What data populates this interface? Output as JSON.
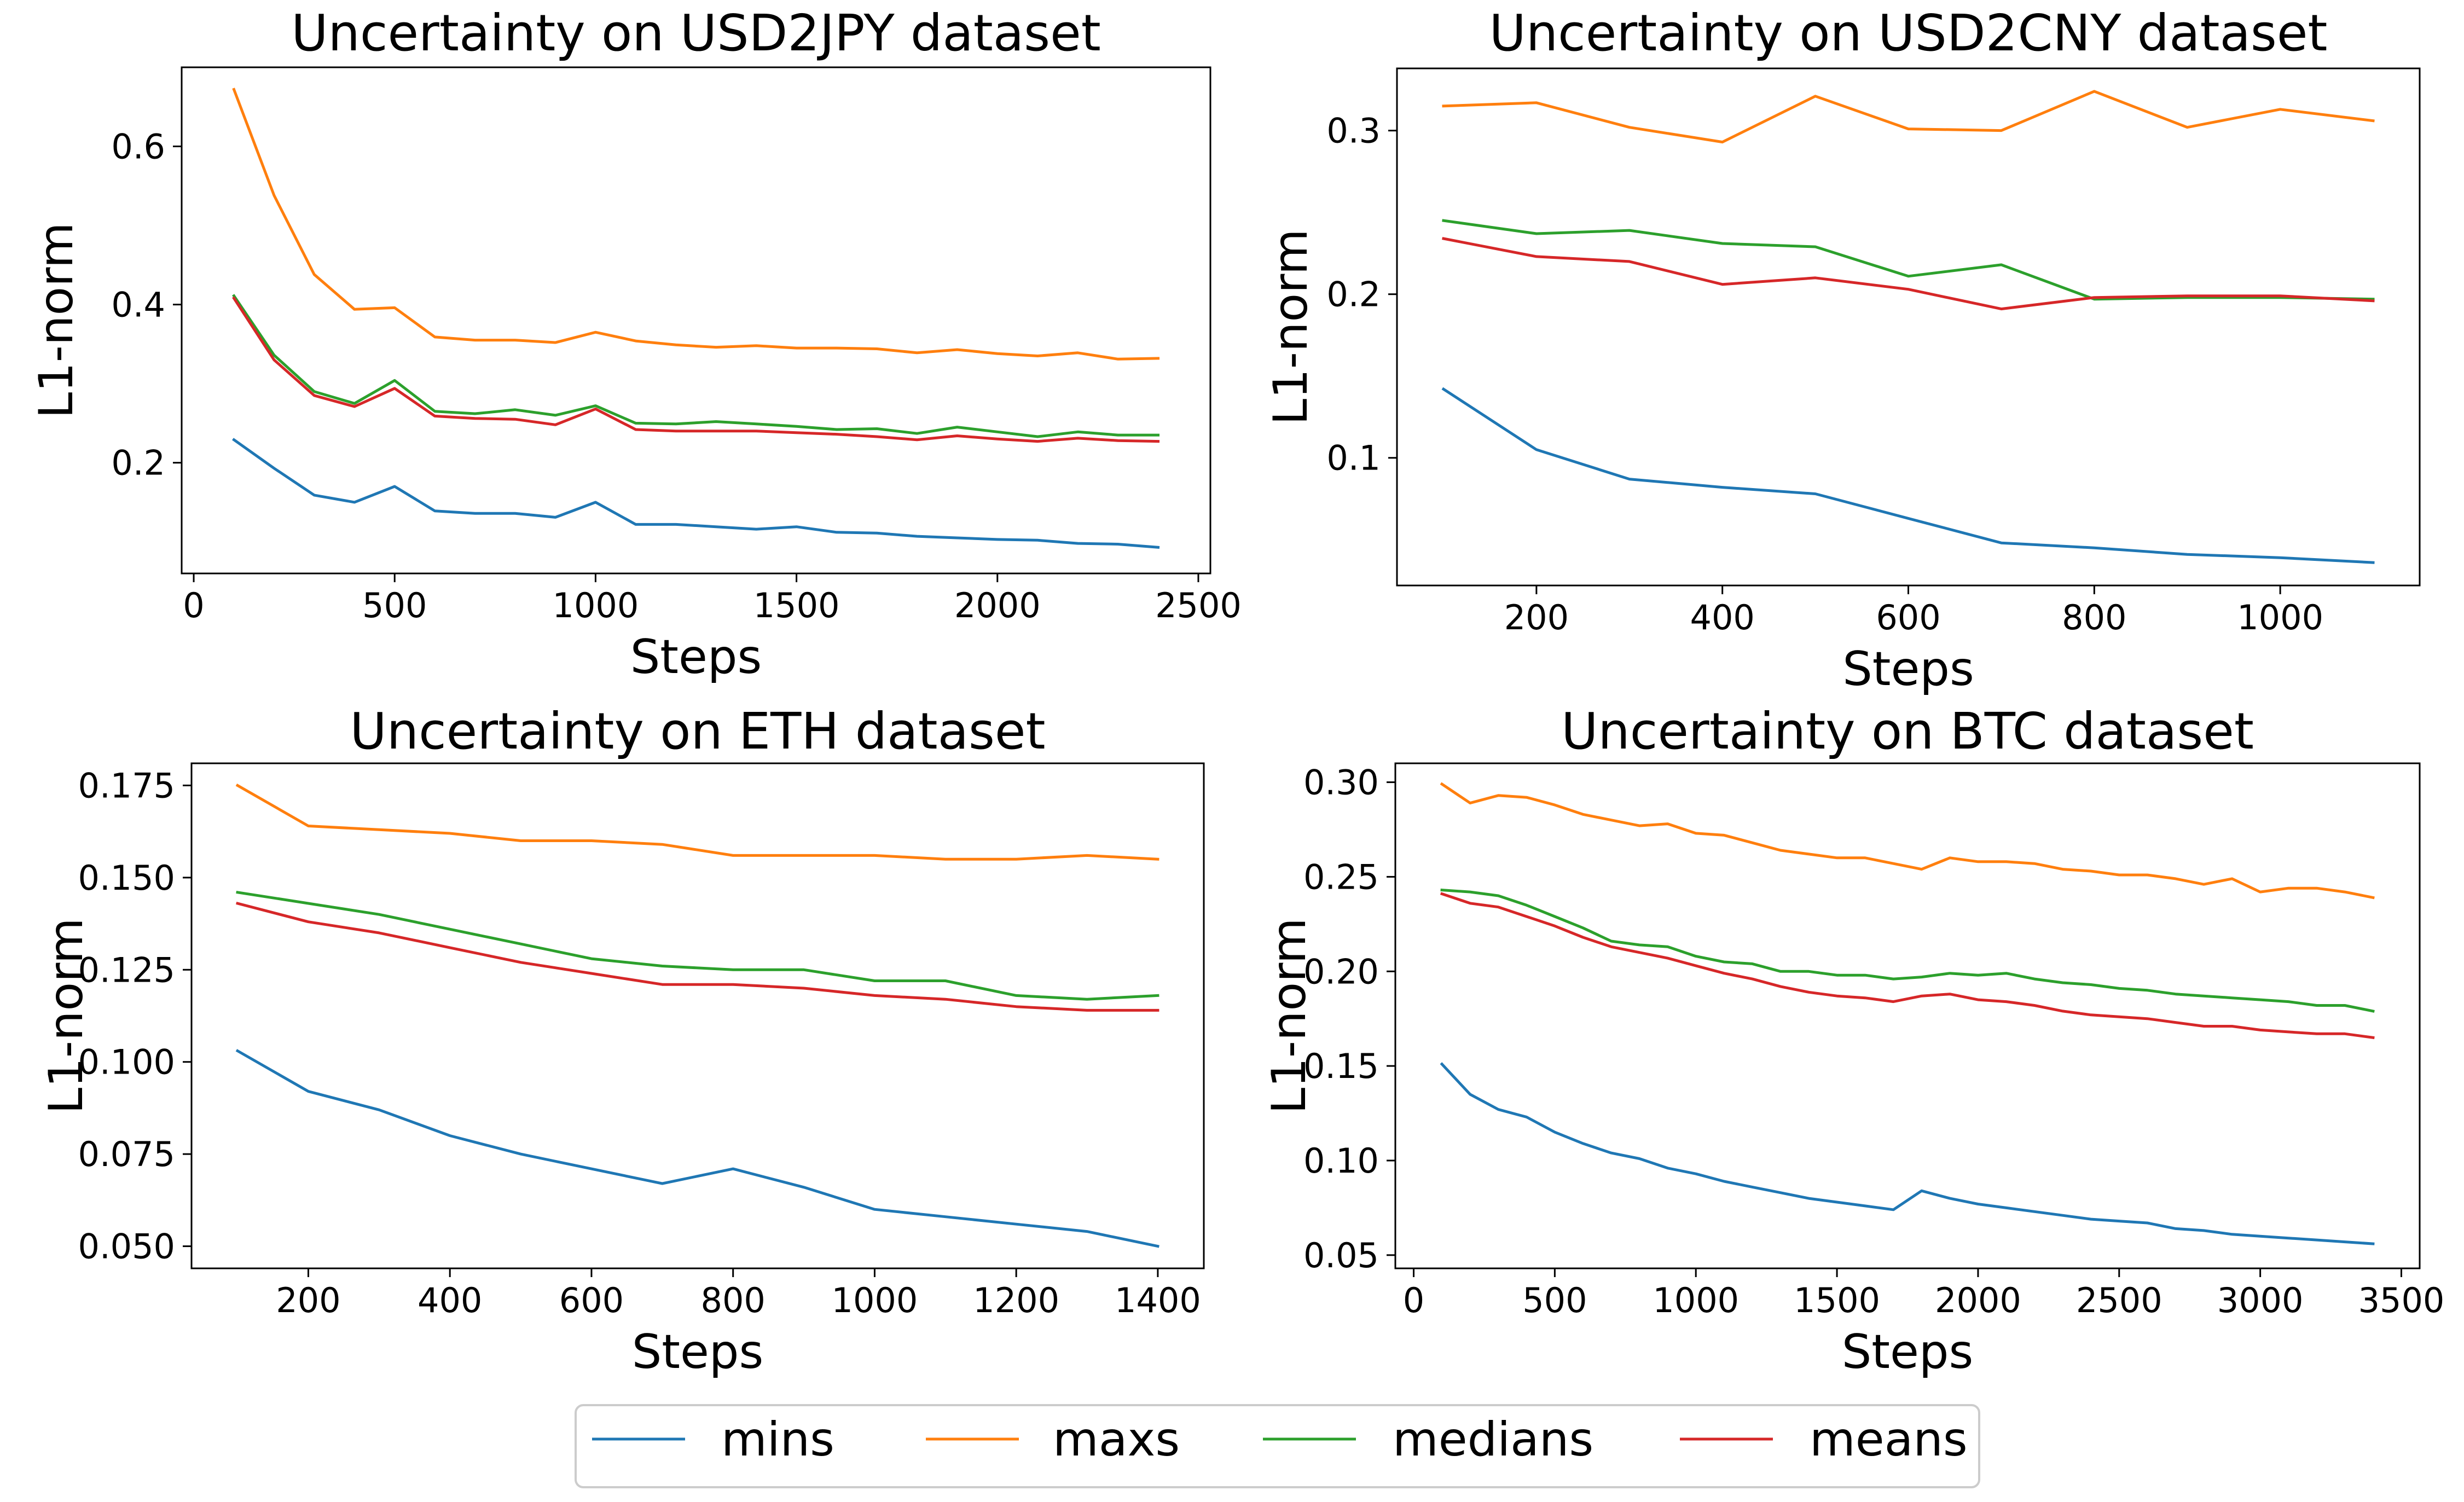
{
  "colors": {
    "mins": "#1f77b4",
    "maxs": "#ff7f0e",
    "medians": "#2ca02c",
    "means": "#d62728"
  },
  "legend": {
    "location": "bottom-center",
    "items": [
      {
        "key": "mins",
        "label": "mins"
      },
      {
        "key": "maxs",
        "label": "maxs"
      },
      {
        "key": "medians",
        "label": "medians"
      },
      {
        "key": "means",
        "label": "means"
      }
    ]
  },
  "chart_data": [
    {
      "type": "line",
      "title": "Uncertainty on USD2JPY dataset",
      "xlabel": "Steps",
      "ylabel": "L1-norm",
      "xlim": [
        -30,
        2530
      ],
      "ylim": [
        0.06,
        0.7
      ],
      "xticks": [
        0,
        500,
        1000,
        1500,
        2000,
        2500
      ],
      "xtick_labels": [
        "0",
        "500",
        "1000",
        "1500",
        "2000",
        "2500"
      ],
      "yticks": [
        0.2,
        0.4,
        0.6
      ],
      "ytick_labels": [
        "0.2",
        "0.4",
        "0.6"
      ],
      "x": [
        100,
        200,
        300,
        400,
        500,
        600,
        700,
        800,
        900,
        1000,
        1100,
        1200,
        1300,
        1400,
        1500,
        1600,
        1700,
        1800,
        1900,
        2000,
        2100,
        2200,
        2300,
        2400
      ],
      "series": [
        {
          "name": "mins",
          "values": [
            0.229,
            0.193,
            0.159,
            0.15,
            0.17,
            0.139,
            0.136,
            0.136,
            0.131,
            0.15,
            0.122,
            0.122,
            0.119,
            0.116,
            0.119,
            0.112,
            0.111,
            0.107,
            0.105,
            0.103,
            0.102,
            0.098,
            0.097,
            0.093
          ]
        },
        {
          "name": "maxs",
          "values": [
            0.672,
            0.538,
            0.438,
            0.394,
            0.396,
            0.359,
            0.355,
            0.355,
            0.352,
            0.365,
            0.354,
            0.349,
            0.346,
            0.348,
            0.345,
            0.345,
            0.344,
            0.339,
            0.343,
            0.338,
            0.335,
            0.339,
            0.331,
            0.332
          ]
        },
        {
          "name": "medians",
          "values": [
            0.411,
            0.336,
            0.29,
            0.275,
            0.304,
            0.265,
            0.262,
            0.267,
            0.26,
            0.272,
            0.25,
            0.249,
            0.252,
            0.249,
            0.246,
            0.242,
            0.243,
            0.237,
            0.245,
            0.239,
            0.233,
            0.239,
            0.235,
            0.235
          ]
        },
        {
          "name": "means",
          "values": [
            0.408,
            0.33,
            0.285,
            0.271,
            0.294,
            0.259,
            0.256,
            0.255,
            0.248,
            0.268,
            0.242,
            0.24,
            0.24,
            0.24,
            0.238,
            0.236,
            0.233,
            0.229,
            0.234,
            0.23,
            0.227,
            0.231,
            0.228,
            0.227
          ]
        }
      ]
    },
    {
      "type": "line",
      "title": "Uncertainty on USD2CNY dataset",
      "xlabel": "Steps",
      "ylabel": "L1-norm",
      "xlim": [
        50,
        1150
      ],
      "ylim": [
        0.022,
        0.338
      ],
      "xticks": [
        200,
        400,
        600,
        800,
        1000
      ],
      "xtick_labels": [
        "200",
        "400",
        "600",
        "800",
        "1000"
      ],
      "yticks": [
        0.1,
        0.2,
        0.3
      ],
      "ytick_labels": [
        "0.1",
        "0.2",
        "0.3"
      ],
      "x": [
        100,
        200,
        300,
        400,
        500,
        600,
        700,
        800,
        900,
        1000,
        1100
      ],
      "series": [
        {
          "name": "mins",
          "values": [
            0.142,
            0.105,
            0.087,
            0.082,
            0.078,
            0.063,
            0.048,
            0.045,
            0.041,
            0.039,
            0.036
          ]
        },
        {
          "name": "maxs",
          "values": [
            0.315,
            0.317,
            0.302,
            0.293,
            0.321,
            0.301,
            0.3,
            0.324,
            0.302,
            0.313,
            0.306
          ]
        },
        {
          "name": "medians",
          "values": [
            0.245,
            0.237,
            0.239,
            0.231,
            0.229,
            0.211,
            0.218,
            0.197,
            0.198,
            0.198,
            0.197
          ]
        },
        {
          "name": "means",
          "values": [
            0.234,
            0.223,
            0.22,
            0.206,
            0.21,
            0.203,
            0.191,
            0.198,
            0.199,
            0.199,
            0.196
          ]
        }
      ]
    },
    {
      "type": "line",
      "title": "Uncertainty on ETH dataset",
      "xlabel": "Steps",
      "ylabel": "L1-norm",
      "xlim": [
        35,
        1465
      ],
      "ylim": [
        0.044,
        0.181
      ],
      "xticks": [
        200,
        400,
        600,
        800,
        1000,
        1200,
        1400
      ],
      "xtick_labels": [
        "200",
        "400",
        "600",
        "800",
        "1000",
        "1200",
        "1400"
      ],
      "yticks": [
        0.05,
        0.075,
        0.1,
        0.125,
        0.15,
        0.175
      ],
      "ytick_labels": [
        "0.050",
        "0.075",
        "0.100",
        "0.125",
        "0.150",
        "0.175"
      ],
      "x": [
        100,
        200,
        300,
        400,
        500,
        600,
        700,
        800,
        900,
        1000,
        1100,
        1200,
        1300,
        1400
      ],
      "series": [
        {
          "name": "mins",
          "values": [
            0.103,
            0.092,
            0.087,
            0.08,
            0.075,
            0.071,
            0.067,
            0.071,
            0.066,
            0.06,
            0.058,
            0.056,
            0.054,
            0.05
          ]
        },
        {
          "name": "maxs",
          "values": [
            0.175,
            0.164,
            0.163,
            0.162,
            0.16,
            0.16,
            0.159,
            0.156,
            0.156,
            0.156,
            0.155,
            0.155,
            0.156,
            0.155
          ]
        },
        {
          "name": "medians",
          "values": [
            0.146,
            0.143,
            0.14,
            0.136,
            0.132,
            0.128,
            0.126,
            0.125,
            0.125,
            0.122,
            0.122,
            0.118,
            0.117,
            0.118
          ]
        },
        {
          "name": "means",
          "values": [
            0.143,
            0.138,
            0.135,
            0.131,
            0.127,
            0.124,
            0.121,
            0.121,
            0.12,
            0.118,
            0.117,
            0.115,
            0.114,
            0.114
          ]
        }
      ]
    },
    {
      "type": "line",
      "title": "Uncertainty on BTC dataset",
      "xlabel": "Steps",
      "ylabel": "L1-norm",
      "xlim": [
        -65,
        3565
      ],
      "ylim": [
        0.043,
        0.31
      ],
      "xticks": [
        0,
        500,
        1000,
        1500,
        2000,
        2500,
        3000,
        3500
      ],
      "xtick_labels": [
        "0",
        "500",
        "1000",
        "1500",
        "2000",
        "2500",
        "3000",
        "3500"
      ],
      "yticks": [
        0.05,
        0.1,
        0.15,
        0.2,
        0.25,
        0.3
      ],
      "ytick_labels": [
        "0.05",
        "0.10",
        "0.15",
        "0.20",
        "0.25",
        "0.30"
      ],
      "x": [
        100,
        200,
        300,
        400,
        500,
        600,
        700,
        800,
        900,
        1000,
        1100,
        1200,
        1300,
        1400,
        1500,
        1600,
        1700,
        1800,
        1900,
        2000,
        2100,
        2200,
        2300,
        2400,
        2500,
        2600,
        2700,
        2800,
        2900,
        3000,
        3100,
        3200,
        3300,
        3400
      ],
      "series": [
        {
          "name": "mins",
          "values": [
            0.151,
            0.135,
            0.127,
            0.123,
            0.115,
            0.109,
            0.104,
            0.101,
            0.096,
            0.093,
            0.089,
            0.086,
            0.083,
            0.08,
            0.078,
            0.076,
            0.074,
            0.084,
            0.08,
            0.077,
            0.075,
            0.073,
            0.071,
            0.069,
            0.068,
            0.067,
            0.064,
            0.063,
            0.061,
            0.06,
            0.059,
            0.058,
            0.057,
            0.056
          ]
        },
        {
          "name": "maxs",
          "values": [
            0.299,
            0.289,
            0.293,
            0.292,
            0.288,
            0.283,
            0.28,
            0.277,
            0.278,
            0.273,
            0.272,
            0.268,
            0.264,
            0.262,
            0.26,
            0.26,
            0.257,
            0.254,
            0.26,
            0.258,
            0.258,
            0.257,
            0.254,
            0.253,
            0.251,
            0.251,
            0.249,
            0.246,
            0.249,
            0.242,
            0.244,
            0.244,
            0.242,
            0.239
          ]
        },
        {
          "name": "medians",
          "values": [
            0.243,
            0.242,
            0.24,
            0.235,
            0.229,
            0.223,
            0.216,
            0.214,
            0.213,
            0.208,
            0.205,
            0.204,
            0.2,
            0.2,
            0.198,
            0.198,
            0.196,
            0.197,
            0.199,
            0.198,
            0.199,
            0.196,
            0.194,
            0.193,
            0.191,
            0.19,
            0.188,
            0.187,
            0.186,
            0.185,
            0.184,
            0.182,
            0.182,
            0.179
          ]
        },
        {
          "name": "means",
          "values": [
            0.241,
            0.236,
            0.234,
            0.229,
            0.224,
            0.218,
            0.213,
            0.21,
            0.207,
            0.203,
            0.199,
            0.196,
            0.192,
            0.189,
            0.187,
            0.186,
            0.184,
            0.187,
            0.188,
            0.185,
            0.184,
            0.182,
            0.179,
            0.177,
            0.176,
            0.175,
            0.173,
            0.171,
            0.171,
            0.169,
            0.168,
            0.167,
            0.167,
            0.165
          ]
        }
      ]
    }
  ]
}
